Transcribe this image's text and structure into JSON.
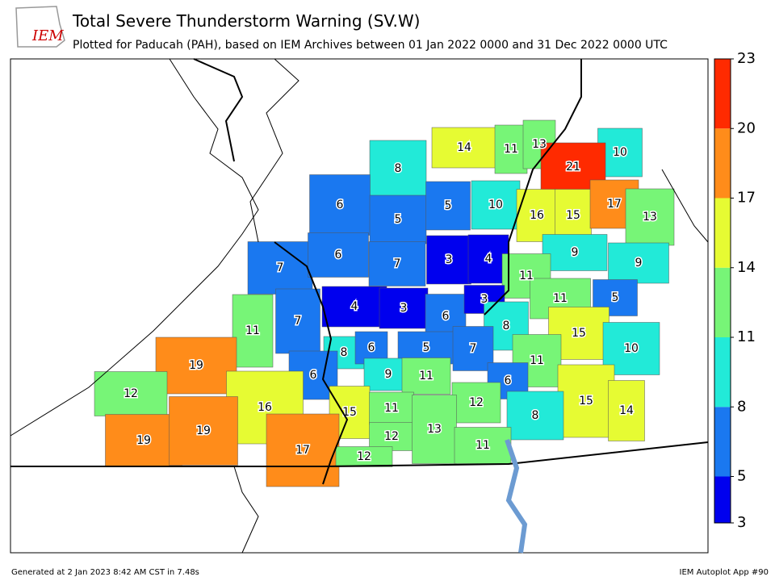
{
  "header": {
    "logo": "IEM",
    "title": "Total Severe Thunderstorm Warning (SV.W)",
    "subtitle": "Plotted for Paducah (PAH), based on IEM Archives  between 01 Jan 2022 0000 and 31 Dec 2022 0000 UTC"
  },
  "map": {
    "values": [
      14,
      11,
      13,
      10,
      8,
      21,
      6,
      5,
      5,
      10,
      16,
      15,
      17,
      13,
      7,
      6,
      7,
      3,
      4,
      9,
      9,
      11,
      11,
      7,
      4,
      3,
      6,
      3,
      11,
      5,
      8,
      15,
      8,
      6,
      5,
      7,
      11,
      10,
      19,
      6,
      9,
      11,
      6,
      12,
      16,
      15,
      11,
      12,
      15,
      14,
      8,
      19,
      19,
      12,
      13,
      17,
      11,
      12
    ],
    "colorbar": {
      "ticks": [
        3,
        5,
        8,
        11,
        14,
        17,
        20,
        23
      ],
      "colors": [
        "#0000ee",
        "#1a78f0",
        "#22ead8",
        "#77f577",
        "#e6fb33",
        "#ff8c1a",
        "#ff2a00"
      ]
    }
  },
  "footer": {
    "left": "Generated at 2 Jan 2023 8:42 AM CST in 7.48s",
    "right": "IEM Autoplot App #90"
  }
}
